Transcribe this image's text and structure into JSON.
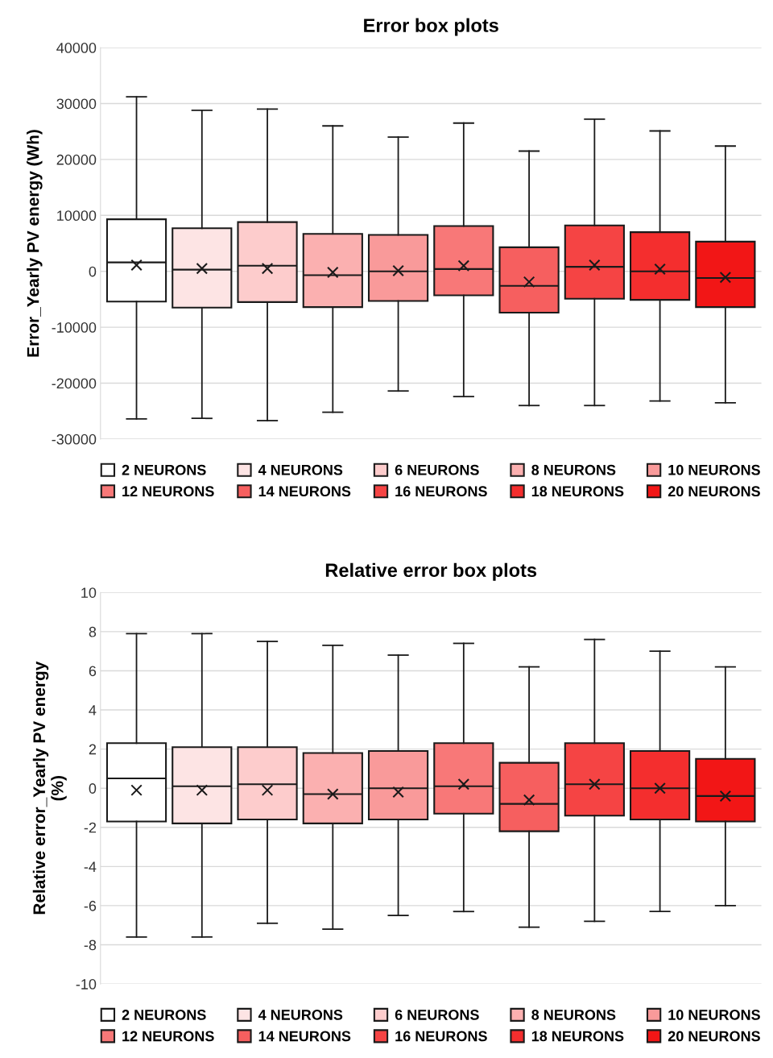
{
  "chart_data": [
    {
      "type": "box",
      "title": "Error box plots",
      "ylabel": "Error_Yearly PV energy (Wh)",
      "categories": [
        null
      ],
      "ylim": [
        -30000,
        40000
      ],
      "yticks": [
        -30000,
        -20000,
        -10000,
        0,
        10000,
        20000,
        30000,
        40000
      ],
      "grid": "y",
      "legend": "bottom",
      "marker": "cross",
      "series": [
        {
          "name": "2 NEURONS",
          "color": "#ffffff",
          "boxes": [
            {
              "low": -26400,
              "q1": -5400,
              "median": 1600,
              "q3": 9300,
              "high": 31200,
              "mean": 1100
            }
          ]
        },
        {
          "name": "4 NEURONS",
          "color": "#fde4e4",
          "boxes": [
            {
              "low": -26300,
              "q1": -6500,
              "median": 300,
              "q3": 7700,
              "high": 28800,
              "mean": 500
            }
          ]
        },
        {
          "name": "6 NEURONS",
          "color": "#fdcccc",
          "boxes": [
            {
              "low": -26700,
              "q1": -5500,
              "median": 1000,
              "q3": 8800,
              "high": 29000,
              "mean": 500
            }
          ]
        },
        {
          "name": "8 NEURONS",
          "color": "#fbb0b0",
          "boxes": [
            {
              "low": -25200,
              "q1": -6400,
              "median": -700,
              "q3": 6700,
              "high": 26000,
              "mean": -200
            }
          ]
        },
        {
          "name": "10 NEURONS",
          "color": "#f99a9a",
          "boxes": [
            {
              "low": -21400,
              "q1": -5300,
              "median": 0,
              "q3": 6500,
              "high": 24000,
              "mean": 100
            }
          ]
        },
        {
          "name": "12 NEURONS",
          "color": "#f87878",
          "boxes": [
            {
              "low": -22400,
              "q1": -4300,
              "median": 400,
              "q3": 8100,
              "high": 26500,
              "mean": 1000
            }
          ]
        },
        {
          "name": "14 NEURONS",
          "color": "#f65f5f",
          "boxes": [
            {
              "low": -24000,
              "q1": -7400,
              "median": -2600,
              "q3": 4300,
              "high": 21500,
              "mean": -1900
            }
          ]
        },
        {
          "name": "16 NEURONS",
          "color": "#f54444",
          "boxes": [
            {
              "low": -24000,
              "q1": -4900,
              "median": 800,
              "q3": 8200,
              "high": 27200,
              "mean": 1100
            }
          ]
        },
        {
          "name": "18 NEURONS",
          "color": "#f42e2e",
          "boxes": [
            {
              "low": -23200,
              "q1": -5100,
              "median": 0,
              "q3": 7000,
              "high": 25100,
              "mean": 400
            }
          ]
        },
        {
          "name": "20 NEURONS",
          "color": "#f21616",
          "boxes": [
            {
              "low": -23500,
              "q1": -6400,
              "median": -1200,
              "q3": 5300,
              "high": 22400,
              "mean": -1100
            }
          ]
        }
      ]
    },
    {
      "type": "box",
      "title": "Relative error box plots",
      "ylabel": "Relative error_Yearly PV energy\n(%)",
      "categories": [
        null
      ],
      "ylim": [
        -10,
        10
      ],
      "yticks": [
        -10,
        -8,
        -6,
        -4,
        -2,
        0,
        2,
        4,
        6,
        8,
        10
      ],
      "grid": "y",
      "legend": "bottom",
      "marker": "cross",
      "series": [
        {
          "name": "2 NEURONS",
          "color": "#ffffff",
          "boxes": [
            {
              "low": -7.6,
              "q1": -1.7,
              "median": 0.5,
              "q3": 2.3,
              "high": 7.9,
              "mean": -0.1
            }
          ]
        },
        {
          "name": "4 NEURONS",
          "color": "#fde4e4",
          "boxes": [
            {
              "low": -7.6,
              "q1": -1.8,
              "median": 0.1,
              "q3": 2.1,
              "high": 7.9,
              "mean": -0.1
            }
          ]
        },
        {
          "name": "6 NEURONS",
          "color": "#fdcccc",
          "boxes": [
            {
              "low": -6.9,
              "q1": -1.6,
              "median": 0.2,
              "q3": 2.1,
              "high": 7.5,
              "mean": -0.1
            }
          ]
        },
        {
          "name": "8 NEURONS",
          "color": "#fbb0b0",
          "boxes": [
            {
              "low": -7.2,
              "q1": -1.8,
              "median": -0.3,
              "q3": 1.8,
              "high": 7.3,
              "mean": -0.3
            }
          ]
        },
        {
          "name": "10 NEURONS",
          "color": "#f99a9a",
          "boxes": [
            {
              "low": -6.5,
              "q1": -1.6,
              "median": 0,
              "q3": 1.9,
              "high": 6.8,
              "mean": -0.2
            }
          ]
        },
        {
          "name": "12 NEURONS",
          "color": "#f87878",
          "boxes": [
            {
              "low": -6.3,
              "q1": -1.3,
              "median": 0.1,
              "q3": 2.3,
              "high": 7.4,
              "mean": 0.2
            }
          ]
        },
        {
          "name": "14 NEURONS",
          "color": "#f65f5f",
          "boxes": [
            {
              "low": -7.1,
              "q1": -2.2,
              "median": -0.8,
              "q3": 1.3,
              "high": 6.2,
              "mean": -0.6
            }
          ]
        },
        {
          "name": "16 NEURONS",
          "color": "#f54444",
          "boxes": [
            {
              "low": -6.8,
              "q1": -1.4,
              "median": 0.2,
              "q3": 2.3,
              "high": 7.6,
              "mean": 0.2
            }
          ]
        },
        {
          "name": "18 NEURONS",
          "color": "#f42e2e",
          "boxes": [
            {
              "low": -6.3,
              "q1": -1.6,
              "median": 0,
              "q3": 1.9,
              "high": 7.0,
              "mean": 0
            }
          ]
        },
        {
          "name": "20 NEURONS",
          "color": "#f21616",
          "boxes": [
            {
              "low": -6.0,
              "q1": -1.7,
              "median": -0.4,
              "q3": 1.5,
              "high": 6.2,
              "mean": -0.4
            }
          ]
        }
      ]
    }
  ]
}
